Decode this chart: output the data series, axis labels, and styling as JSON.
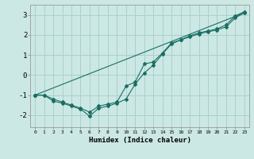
{
  "xlabel": "Humidex (Indice chaleur)",
  "bg_color": "#cce8e4",
  "grid_color": "#aad0cc",
  "line_color": "#1a6e64",
  "xlim": [
    -0.5,
    23.5
  ],
  "ylim": [
    -2.6,
    3.5
  ],
  "yticks": [
    -2,
    -1,
    0,
    1,
    2,
    3
  ],
  "xticks": [
    0,
    1,
    2,
    3,
    4,
    5,
    6,
    7,
    8,
    9,
    10,
    11,
    12,
    13,
    14,
    15,
    16,
    17,
    18,
    19,
    20,
    21,
    22,
    23
  ],
  "series1_x": [
    0,
    1,
    2,
    3,
    4,
    5,
    6,
    7,
    8,
    9,
    10,
    11,
    12,
    13,
    14,
    15,
    16,
    17,
    18,
    19,
    20,
    21,
    22,
    23
  ],
  "series1_y": [
    -1.0,
    -1.0,
    -1.2,
    -1.35,
    -1.5,
    -1.65,
    -1.85,
    -1.55,
    -1.45,
    -1.35,
    -0.55,
    -0.35,
    0.55,
    0.65,
    1.1,
    1.6,
    1.75,
    1.95,
    2.1,
    2.2,
    2.3,
    2.5,
    2.95,
    3.15
  ],
  "series2_x": [
    0,
    1,
    2,
    3,
    4,
    5,
    6,
    7,
    8,
    9,
    10,
    11,
    12,
    13,
    14,
    15,
    16,
    17,
    18,
    19,
    20,
    21,
    22,
    23
  ],
  "series2_y": [
    -1.0,
    -1.0,
    -1.3,
    -1.4,
    -1.55,
    -1.7,
    -2.05,
    -1.65,
    -1.55,
    -1.4,
    -1.2,
    -0.45,
    0.1,
    0.5,
    1.05,
    1.55,
    1.75,
    1.9,
    2.05,
    2.15,
    2.25,
    2.4,
    2.85,
    3.1
  ],
  "series3_x": [
    0,
    23
  ],
  "series3_y": [
    -1.0,
    3.1
  ]
}
